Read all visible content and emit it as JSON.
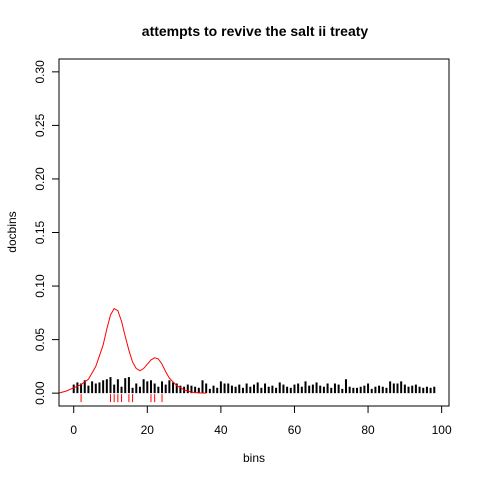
{
  "chart_data": {
    "type": "line",
    "title": "attempts to revive the salt ii treaty",
    "xlabel": "bins",
    "ylabel": "docbins",
    "xlim": [
      -4,
      102
    ],
    "ylim": [
      -0.012,
      0.312
    ],
    "x_ticks": [
      0,
      20,
      40,
      60,
      80,
      100
    ],
    "y_ticks": [
      0.0,
      0.05,
      0.1,
      0.15,
      0.2,
      0.25,
      0.3
    ],
    "x_tick_labels": [
      "0",
      "20",
      "40",
      "60",
      "80",
      "100"
    ],
    "y_tick_labels": [
      "0.00",
      "0.05",
      "0.10",
      "0.15",
      "0.20",
      "0.25",
      "0.30"
    ],
    "bars": {
      "color": "#000000",
      "x": [
        0,
        1,
        2,
        3,
        4,
        5,
        6,
        7,
        8,
        9,
        10,
        11,
        12,
        13,
        14,
        15,
        16,
        17,
        18,
        19,
        20,
        21,
        22,
        23,
        24,
        25,
        26,
        27,
        28,
        29,
        30,
        31,
        32,
        33,
        34,
        35,
        36,
        37,
        38,
        39,
        40,
        41,
        42,
        43,
        44,
        45,
        46,
        47,
        48,
        49,
        50,
        51,
        52,
        53,
        54,
        55,
        56,
        57,
        58,
        59,
        60,
        61,
        62,
        63,
        64,
        65,
        66,
        67,
        68,
        69,
        70,
        71,
        72,
        73,
        74,
        75,
        76,
        77,
        78,
        79,
        80,
        81,
        82,
        83,
        84,
        85,
        86,
        87,
        88,
        89,
        90,
        91,
        92,
        93,
        94,
        95,
        96,
        97,
        98
      ],
      "values": [
        0.008,
        0.01,
        0.009,
        0.012,
        0.007,
        0.011,
        0.009,
        0.01,
        0.012,
        0.013,
        0.015,
        0.008,
        0.013,
        0.006,
        0.014,
        0.015,
        0.005,
        0.009,
        0.006,
        0.013,
        0.011,
        0.012,
        0.009,
        0.006,
        0.011,
        0.008,
        0.012,
        0.01,
        0.009,
        0.007,
        0.006,
        0.008,
        0.007,
        0.006,
        0.005,
        0.012,
        0.009,
        0.004,
        0.007,
        0.005,
        0.011,
        0.009,
        0.009,
        0.007,
        0.006,
        0.008,
        0.005,
        0.009,
        0.006,
        0.008,
        0.01,
        0.005,
        0.009,
        0.006,
        0.007,
        0.005,
        0.01,
        0.008,
        0.006,
        0.005,
        0.008,
        0.009,
        0.006,
        0.011,
        0.007,
        0.008,
        0.01,
        0.007,
        0.006,
        0.009,
        0.005,
        0.009,
        0.008,
        0.004,
        0.013,
        0.006,
        0.005,
        0.005,
        0.006,
        0.007,
        0.009,
        0.004,
        0.006,
        0.007,
        0.006,
        0.005,
        0.011,
        0.009,
        0.009,
        0.011,
        0.008,
        0.006,
        0.007,
        0.008,
        0.006,
        0.005,
        0.006,
        0.005,
        0.006
      ]
    },
    "rug": {
      "color": "#ff0000",
      "x": [
        2,
        10,
        11,
        12,
        13,
        15,
        16,
        21,
        22,
        24
      ]
    },
    "density_line": {
      "color": "#ff0000",
      "x": [
        -4,
        -2,
        0,
        2,
        4,
        6,
        8,
        9,
        10,
        11,
        12,
        13,
        14,
        15,
        16,
        17,
        18,
        19,
        20,
        21,
        22,
        23,
        24,
        25,
        26,
        28,
        30,
        32,
        34,
        36
      ],
      "y": [
        0.0,
        0.002,
        0.005,
        0.008,
        0.013,
        0.025,
        0.045,
        0.06,
        0.073,
        0.079,
        0.077,
        0.067,
        0.053,
        0.04,
        0.029,
        0.023,
        0.021,
        0.023,
        0.027,
        0.031,
        0.033,
        0.032,
        0.027,
        0.02,
        0.014,
        0.007,
        0.003,
        0.001,
        0.0002,
        0.0
      ]
    }
  }
}
